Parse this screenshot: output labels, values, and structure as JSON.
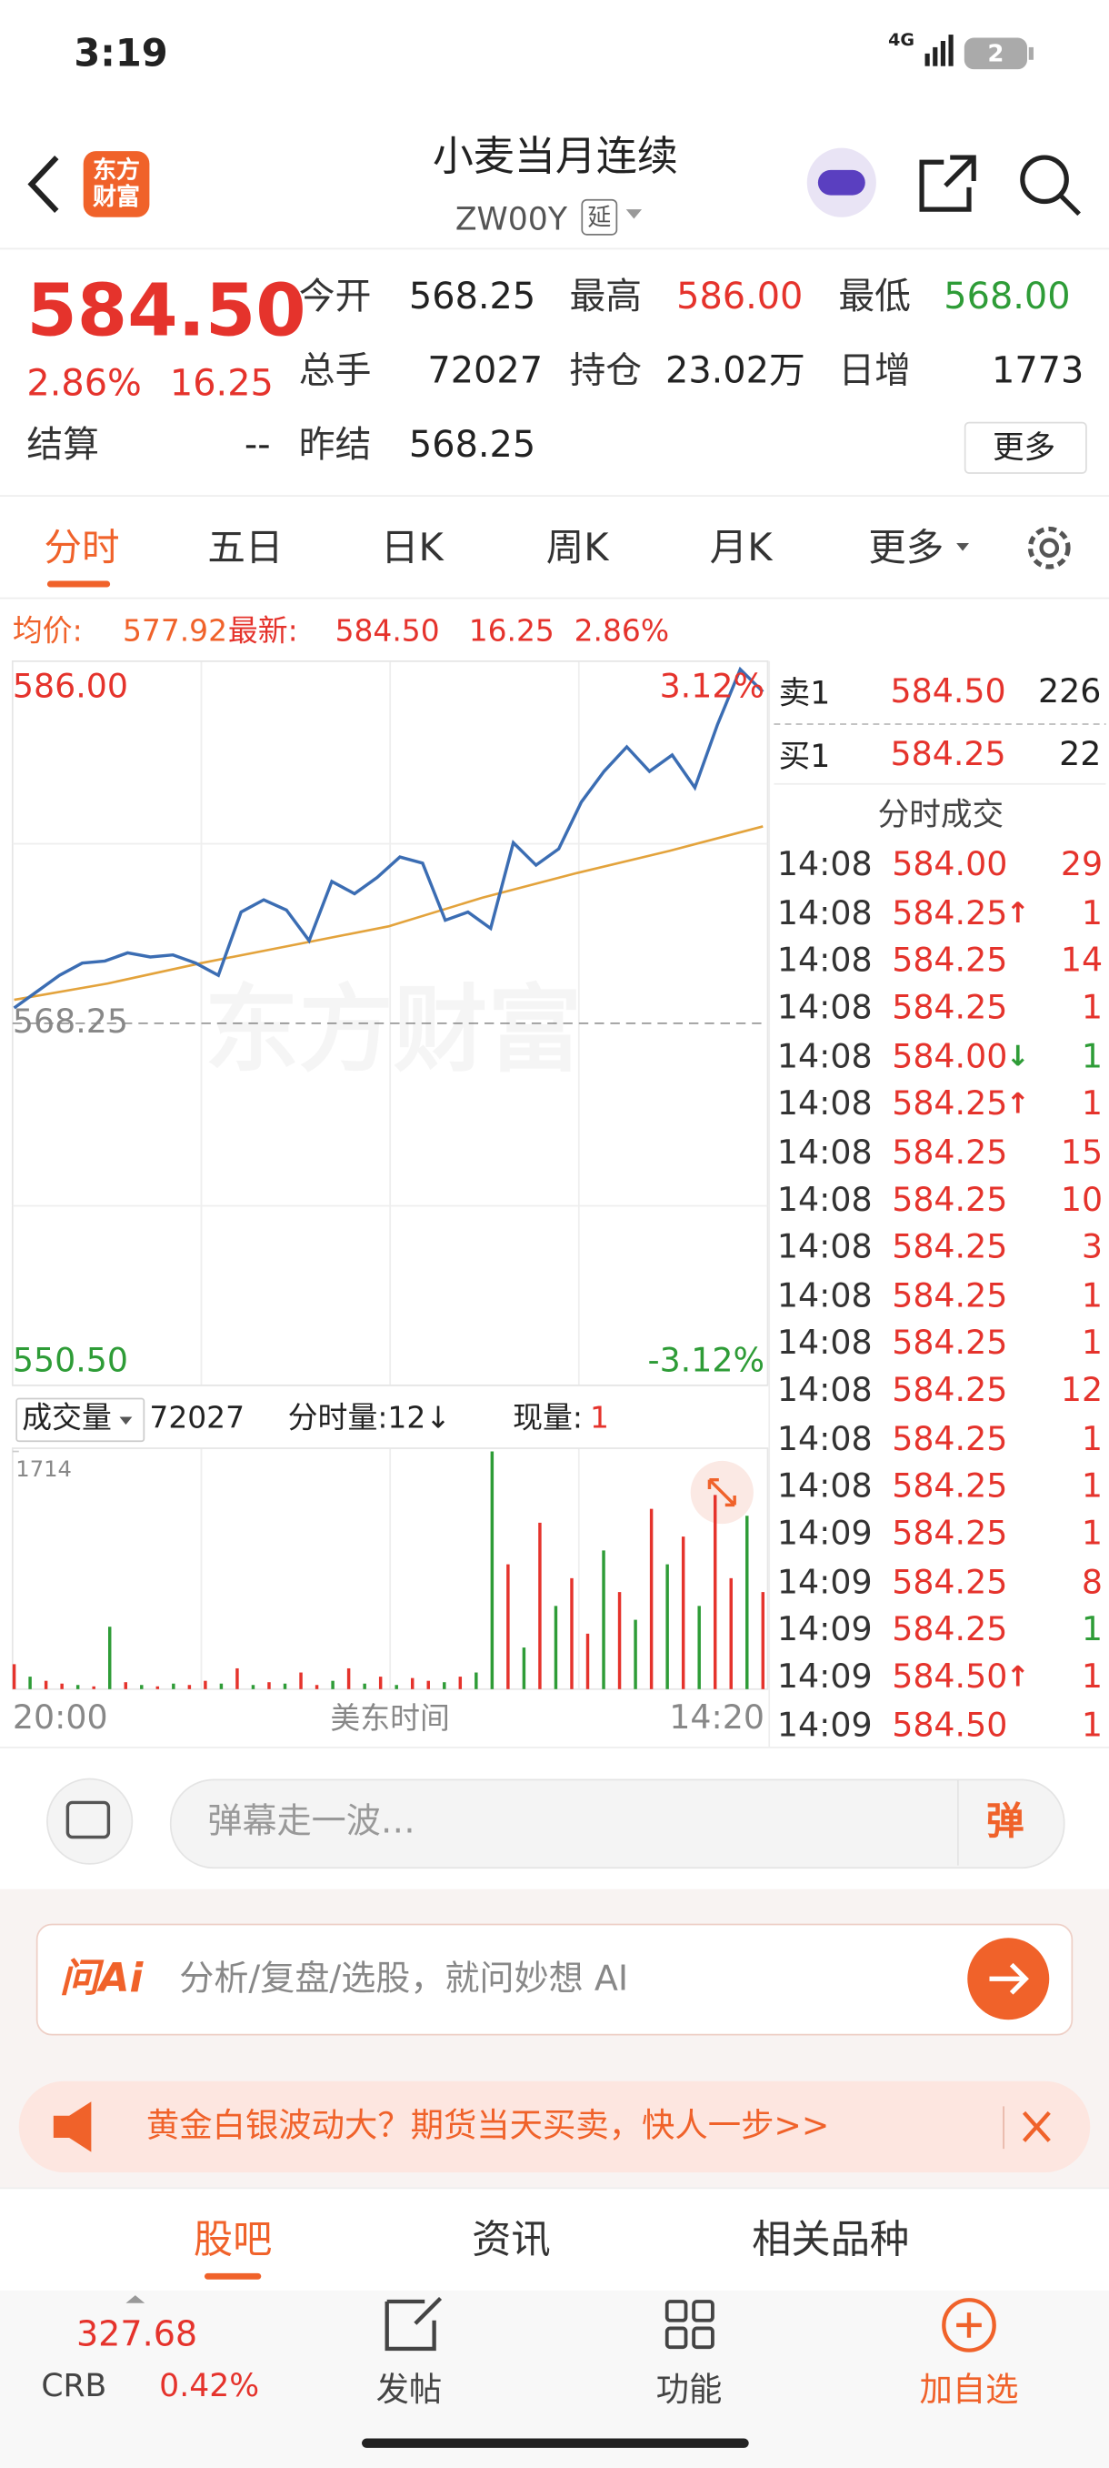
{
  "status_bar": {
    "time": "3:19",
    "network": "4G",
    "battery": "2"
  },
  "header": {
    "logo": "东方财富",
    "title": "小麦当月连续",
    "code": "ZW00Y",
    "delay_tag": "延"
  },
  "quote": {
    "price": "584.50",
    "change_pct": "2.86%",
    "change": "16.25",
    "settle_label": "结算",
    "settle": "--",
    "fields": [
      {
        "label": "今开",
        "value": "568.25"
      },
      {
        "label": "最高",
        "value": "586.00"
      },
      {
        "label": "最低",
        "value": "568.00"
      },
      {
        "label": "总手",
        "value": "72027"
      },
      {
        "label": "持仓",
        "value": "23.02万"
      },
      {
        "label": "日增",
        "value": "1773"
      },
      {
        "label": "昨结",
        "value": "568.25"
      }
    ],
    "more": "更多"
  },
  "tabs": [
    "分时",
    "五日",
    "日K",
    "周K",
    "月K",
    "更多"
  ],
  "info": {
    "avg_label": "均价:",
    "avg": "577.92",
    "last_label": "最新:",
    "last": "584.50",
    "change": "16.25",
    "change_pct": "2.86%"
  },
  "intraday": {
    "type": "line",
    "ylim": [
      550.5,
      586
    ],
    "yticks": [
      {
        "value": 586,
        "label": "586.00"
      },
      {
        "value": 568.25,
        "label": "568.25"
      },
      {
        "value": 550.5,
        "label": "550.50"
      }
    ],
    "pct_top": "3.12%",
    "pct_bottom": "-3.12%",
    "watermark": "东方财富",
    "price_color": "#3b6db3",
    "avg_color": "#e3a33c",
    "price": [
      569.0,
      569.8,
      570.6,
      571.2,
      571.3,
      571.7,
      571.5,
      571.6,
      571.2,
      570.6,
      573.7,
      574.3,
      573.8,
      572.3,
      575.2,
      574.6,
      575.4,
      576.4,
      576.1,
      573.3,
      573.7,
      572.9,
      577.1,
      576.0,
      576.8,
      579.1,
      580.6,
      581.8,
      580.6,
      581.4,
      579.8,
      582.9,
      585.6,
      584.5
    ],
    "avg": [
      569.4,
      570.2,
      571.2,
      572.1,
      573.0,
      574.4,
      575.6,
      576.7,
      577.9
    ]
  },
  "volume": {
    "label": "成交量",
    "total": "72027",
    "minute_label": "分时量:12↓",
    "current_label": "现量:",
    "current": "1",
    "ylim": [
      0,
      1714
    ],
    "yticks": [
      1714
    ],
    "values": [
      180,
      90,
      60,
      40,
      30,
      20,
      450,
      50,
      30,
      20,
      40,
      30,
      60,
      40,
      150,
      30,
      50,
      40,
      120,
      30,
      60,
      150,
      40,
      90,
      30,
      80,
      60,
      50,
      90,
      120,
      1714,
      900,
      300,
      1200,
      600,
      800,
      400,
      1000,
      700,
      500,
      1300,
      900,
      1100,
      600,
      1400,
      800,
      1250,
      700
    ],
    "up": [
      true,
      false,
      true,
      true,
      false,
      true,
      false,
      true,
      false,
      true,
      false,
      true,
      true,
      false,
      true,
      false,
      true,
      false,
      true,
      true,
      false,
      true,
      false,
      true,
      false,
      true,
      true,
      false,
      true,
      false,
      false,
      true,
      false,
      true,
      false,
      true,
      true,
      false,
      true,
      false,
      true,
      false,
      true,
      false,
      true,
      true,
      false,
      true
    ]
  },
  "time_axis": [
    "20:00",
    "美东时间",
    "14:20"
  ],
  "order_book": {
    "ask": {
      "label": "卖1",
      "price": "584.50",
      "volume": "226"
    },
    "bid": {
      "label": "买1",
      "price": "584.25",
      "volume": "22"
    },
    "trades_title": "分时成交",
    "trades": [
      {
        "time": "14:08",
        "price": "584.00",
        "volume": "29",
        "volume_color": "red"
      },
      {
        "time": "14:08",
        "price": "584.25",
        "arrow": "↑",
        "volume": "1",
        "volume_color": "red"
      },
      {
        "time": "14:08",
        "price": "584.25",
        "volume": "14",
        "volume_color": "red"
      },
      {
        "time": "14:08",
        "price": "584.25",
        "volume": "1",
        "volume_color": "red"
      },
      {
        "time": "14:08",
        "price": "584.00",
        "arrow": "↓",
        "volume": "1",
        "volume_color": "green"
      },
      {
        "time": "14:08",
        "price": "584.25",
        "arrow": "↑",
        "volume": "1",
        "volume_color": "red"
      },
      {
        "time": "14:08",
        "price": "584.25",
        "volume": "15",
        "volume_color": "red"
      },
      {
        "time": "14:08",
        "price": "584.25",
        "volume": "10",
        "volume_color": "red"
      },
      {
        "time": "14:08",
        "price": "584.25",
        "volume": "3",
        "volume_color": "red"
      },
      {
        "time": "14:08",
        "price": "584.25",
        "volume": "1",
        "volume_color": "red"
      },
      {
        "time": "14:08",
        "price": "584.25",
        "volume": "1",
        "volume_color": "red"
      },
      {
        "time": "14:08",
        "price": "584.25",
        "volume": "12",
        "volume_color": "red"
      },
      {
        "time": "14:08",
        "price": "584.25",
        "volume": "1",
        "volume_color": "red"
      },
      {
        "time": "14:08",
        "price": "584.25",
        "volume": "1",
        "volume_color": "red"
      },
      {
        "time": "14:09",
        "price": "584.25",
        "volume": "1",
        "volume_color": "red"
      },
      {
        "time": "14:09",
        "price": "584.25",
        "volume": "8",
        "volume_color": "red"
      },
      {
        "time": "14:09",
        "price": "584.25",
        "volume": "1",
        "volume_color": "green"
      },
      {
        "time": "14:09",
        "price": "584.50",
        "arrow": "↑",
        "volume": "1",
        "volume_color": "red"
      },
      {
        "time": "14:09",
        "price": "584.50",
        "volume": "1",
        "volume_color": "red"
      }
    ]
  },
  "comment": {
    "placeholder": "弹幕走一波…",
    "danmu": "弹"
  },
  "ai": {
    "logo": "问Ai",
    "placeholder": "分析/复盘/选股，就问妙想 AI"
  },
  "banner": {
    "text": "黄金白银波动大？期货当天买卖，快人一步>>"
  },
  "bottom_tabs": [
    "股吧",
    "资讯",
    "相关品种"
  ],
  "bottom_bar": {
    "index_value": "327.68",
    "index_name": "CRB",
    "index_change": "0.42%",
    "actions": [
      "发帖",
      "功能",
      "加自选"
    ]
  }
}
